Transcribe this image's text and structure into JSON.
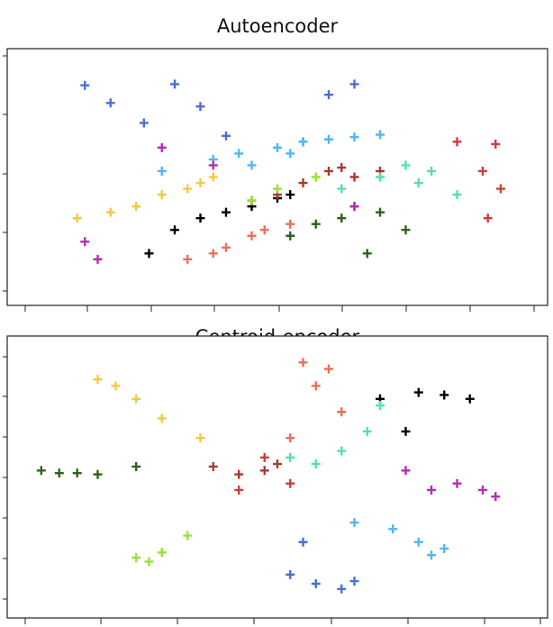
{
  "chart_data": [
    {
      "type": "scatter",
      "title": "Autoencoder",
      "xlabel": "",
      "ylabel": "",
      "xlim": [
        -10,
        10
      ],
      "ylim": [
        -10,
        10
      ],
      "grid": false,
      "marker": "+",
      "series": [
        {
          "color": "#4a6fd8",
          "x": [
            -7.5,
            -6.5,
            -5.2,
            -4.0,
            -3.0,
            2.0,
            3.0,
            1.0,
            -2.0
          ],
          "y": [
            7.8,
            6.3,
            4.6,
            7.9,
            6.0,
            7.0,
            7.9,
            3.0,
            3.5
          ]
        },
        {
          "color": "#52b7f0",
          "x": [
            -2.5,
            -1.5,
            0.0,
            1.0,
            2.0,
            3.0,
            4.0,
            -1.0,
            0.5,
            -4.5
          ],
          "y": [
            1.5,
            2.0,
            2.5,
            3.0,
            3.2,
            3.4,
            3.6,
            1.0,
            2.0,
            0.5
          ]
        },
        {
          "color": "#f4c842",
          "x": [
            -7.8,
            -6.5,
            -5.5,
            -4.5,
            -3.5,
            -3.0,
            -2.5
          ],
          "y": [
            -3.5,
            -3.0,
            -2.5,
            -1.5,
            -1.0,
            -0.5,
            0.0
          ]
        },
        {
          "color": "#000000",
          "x": [
            -5.0,
            -4.0,
            -3.0,
            -2.0,
            -1.0,
            0.0,
            0.5
          ],
          "y": [
            -6.5,
            -4.5,
            -3.5,
            -3.0,
            -2.5,
            -1.8,
            -1.5
          ]
        },
        {
          "color": "#a83a2e",
          "x": [
            -1.0,
            0.0,
            1.0,
            2.0,
            2.5,
            3.0,
            4.0
          ],
          "y": [
            -2.0,
            -1.5,
            -0.5,
            0.5,
            0.8,
            0.0,
            0.5
          ]
        },
        {
          "color": "#e9705a",
          "x": [
            -3.5,
            -2.5,
            -2.0,
            -1.0,
            -0.5,
            0.5
          ],
          "y": [
            -7.0,
            -6.5,
            -6.0,
            -5.0,
            -4.5,
            -4.0
          ]
        },
        {
          "color": "#2c6418",
          "x": [
            0.5,
            1.5,
            2.5,
            3.0,
            4.0,
            5.0,
            3.5
          ],
          "y": [
            -5.0,
            -4.0,
            -3.5,
            -2.5,
            -3.0,
            -4.5,
            -6.5
          ]
        },
        {
          "color": "#55e2a8",
          "x": [
            2.5,
            4.0,
            5.0,
            6.0,
            5.5,
            7.0
          ],
          "y": [
            -1.0,
            0.0,
            1.0,
            0.5,
            -0.5,
            -1.5
          ]
        },
        {
          "color": "#9adf3a",
          "x": [
            -1.0,
            0.0,
            1.5
          ],
          "y": [
            -2.0,
            -1.0,
            0.0
          ]
        },
        {
          "color": "#b52cb5",
          "x": [
            -7.5,
            -7.0,
            -4.5,
            -2.5,
            3.0
          ],
          "y": [
            -5.5,
            -7.0,
            2.5,
            1.0,
            -2.5
          ]
        },
        {
          "color": "#ca3f3a",
          "x": [
            7.0,
            8.5,
            8.0,
            8.7,
            8.2
          ],
          "y": [
            3.0,
            2.8,
            0.5,
            -1.0,
            -3.5
          ]
        }
      ]
    },
    {
      "type": "scatter",
      "title": "Centroid-encoder",
      "xlabel": "",
      "ylabel": "",
      "xlim": [
        -10,
        10
      ],
      "ylim": [
        -10,
        10
      ],
      "grid": false,
      "marker": "+",
      "series": [
        {
          "color": "#f4c842",
          "x": [
            -7.0,
            -6.3,
            -5.5,
            -4.5,
            -3.0
          ],
          "y": [
            7.5,
            7.0,
            6.0,
            4.5,
            3.0
          ]
        },
        {
          "color": "#e9705a",
          "x": [
            1.0,
            2.0,
            1.5,
            2.5,
            0.5
          ],
          "y": [
            8.8,
            8.3,
            7.0,
            5.0,
            3.0
          ]
        },
        {
          "color": "#000000",
          "x": [
            4.0,
            5.5,
            6.5,
            7.5,
            5.0
          ],
          "y": [
            6.0,
            6.5,
            6.3,
            6.0,
            3.5
          ]
        },
        {
          "color": "#2c6418",
          "x": [
            -9.2,
            -8.5,
            -7.8,
            -7.0,
            -5.5
          ],
          "y": [
            0.5,
            0.3,
            0.3,
            0.2,
            0.8
          ]
        },
        {
          "color": "#a83a2e",
          "x": [
            -2.5,
            -1.5,
            -0.5,
            0.0
          ],
          "y": [
            0.8,
            0.2,
            0.5,
            1.0
          ]
        },
        {
          "color": "#55e2a8",
          "x": [
            0.5,
            1.5,
            2.5,
            3.5,
            4.0
          ],
          "y": [
            1.5,
            1.0,
            2.0,
            3.5,
            5.5
          ]
        },
        {
          "color": "#b52cb5",
          "x": [
            6.0,
            7.0,
            8.0,
            8.5,
            5.0
          ],
          "y": [
            -1.0,
            -0.5,
            -1.0,
            -1.5,
            0.5
          ]
        },
        {
          "color": "#52b7f0",
          "x": [
            3.0,
            4.5,
            5.5,
            6.0,
            6.5
          ],
          "y": [
            -3.5,
            -4.0,
            -5.0,
            -6.0,
            -5.5
          ]
        },
        {
          "color": "#4a6fd8",
          "x": [
            0.5,
            1.5,
            2.5,
            3.0,
            1.0
          ],
          "y": [
            -7.5,
            -8.2,
            -8.6,
            -8.0,
            -5.0
          ]
        },
        {
          "color": "#9adf3a",
          "x": [
            -5.5,
            -5.0,
            -4.5,
            -3.5
          ],
          "y": [
            -6.2,
            -6.5,
            -5.8,
            -4.5
          ]
        },
        {
          "color": "#ca3f3a",
          "x": [
            -1.5,
            -0.5,
            0.5
          ],
          "y": [
            -1.0,
            1.5,
            -0.5
          ]
        }
      ]
    }
  ]
}
